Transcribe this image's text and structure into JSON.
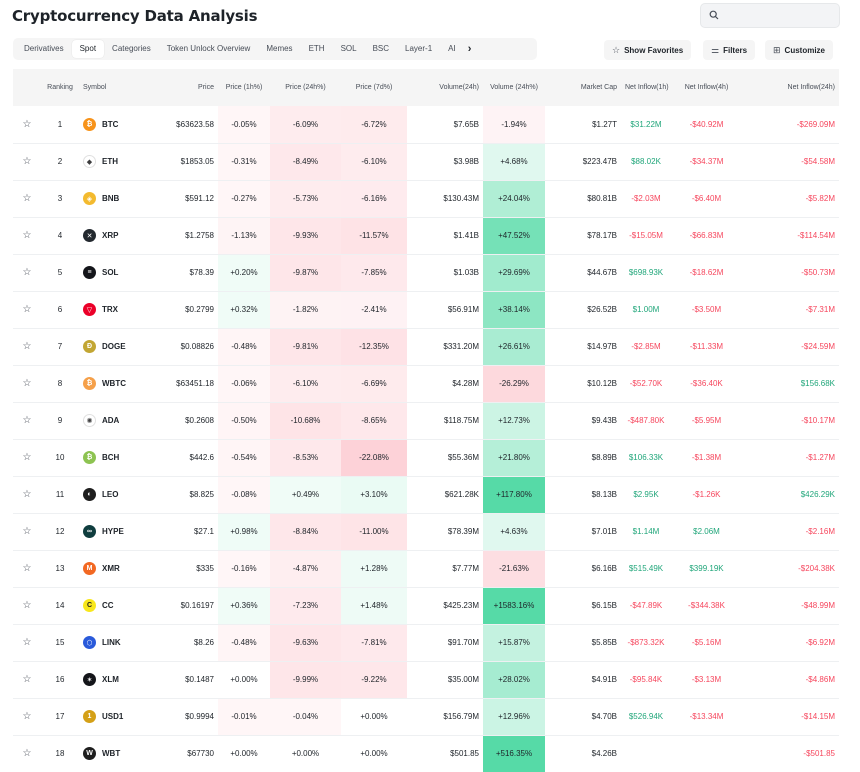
{
  "title": "Cryptocurrency Data Analysis",
  "search": {
    "placeholder": ""
  },
  "tabs": [
    "Derivatives",
    "Spot",
    "Categories",
    "Token Unlock Overview",
    "Memes",
    "ETH",
    "SOL",
    "BSC",
    "Layer-1",
    "AI"
  ],
  "active_tab": "Spot",
  "toolbar": {
    "favorites_label": "Show Favorites",
    "filters_label": "Filters",
    "customize_label": "Customize"
  },
  "columns": [
    "Ranking",
    "Symbol",
    "Price",
    "Price (1h%)",
    "Price (24h%)",
    "Price (7d%)",
    "Volume(24h)",
    "Volume (24h%)",
    "Market Cap",
    "Net Inflow(1h)",
    "Net Inflow(4h)",
    "Net Inflow(24h)"
  ],
  "rows": [
    {
      "rank": "1",
      "symbol": "BTC",
      "price": "$63623.58",
      "p1h": "-0.05%",
      "p24h": "-6.09%",
      "p7d": "-6.72%",
      "vol": "$7.65B",
      "vol24": "-1.94%",
      "mcap": "$1.27T",
      "in1h": "$31.22M",
      "in4h": "-$40.92M",
      "in24h": "-$269.09M",
      "color": "#f7931a",
      "glyph": "₿"
    },
    {
      "rank": "2",
      "symbol": "ETH",
      "price": "$1853.05",
      "p1h": "-0.31%",
      "p24h": "-8.49%",
      "p7d": "-6.10%",
      "vol": "$3.98B",
      "vol24": "+4.68%",
      "mcap": "$223.47B",
      "in1h": "$88.02K",
      "in4h": "-$34.37M",
      "in24h": "-$54.58M",
      "color": "#ffffff",
      "glyph": "◆"
    },
    {
      "rank": "3",
      "symbol": "BNB",
      "price": "$591.12",
      "p1h": "-0.27%",
      "p24h": "-5.73%",
      "p7d": "-6.16%",
      "vol": "$130.43M",
      "vol24": "+24.04%",
      "mcap": "$80.81B",
      "in1h": "-$2.03M",
      "in4h": "-$6.40M",
      "in24h": "-$5.82M",
      "color": "#f3ba2f",
      "glyph": "◈"
    },
    {
      "rank": "4",
      "symbol": "XRP",
      "price": "$1.2758",
      "p1h": "-1.13%",
      "p24h": "-9.93%",
      "p7d": "-11.57%",
      "vol": "$1.41B",
      "vol24": "+47.52%",
      "mcap": "$78.17B",
      "in1h": "-$15.05M",
      "in4h": "-$66.83M",
      "in24h": "-$114.54M",
      "color": "#23292f",
      "glyph": "✕"
    },
    {
      "rank": "5",
      "symbol": "SOL",
      "price": "$78.39",
      "p1h": "+0.20%",
      "p24h": "-9.87%",
      "p7d": "-7.85%",
      "vol": "$1.03B",
      "vol24": "+29.69%",
      "mcap": "$44.67B",
      "in1h": "$698.93K",
      "in4h": "-$18.62M",
      "in24h": "-$50.73M",
      "color": "#14151a",
      "glyph": "≡"
    },
    {
      "rank": "6",
      "symbol": "TRX",
      "price": "$0.2799",
      "p1h": "+0.32%",
      "p24h": "-1.82%",
      "p7d": "-2.41%",
      "vol": "$56.91M",
      "vol24": "+38.14%",
      "mcap": "$26.52B",
      "in1h": "$1.00M",
      "in4h": "-$3.50M",
      "in24h": "-$7.31M",
      "color": "#eb0029",
      "glyph": "▽"
    },
    {
      "rank": "7",
      "symbol": "DOGE",
      "price": "$0.08826",
      "p1h": "-0.48%",
      "p24h": "-9.81%",
      "p7d": "-12.35%",
      "vol": "$331.20M",
      "vol24": "+26.61%",
      "mcap": "$14.97B",
      "in1h": "-$2.85M",
      "in4h": "-$11.33M",
      "in24h": "-$24.59M",
      "color": "#c2a633",
      "glyph": "Ð"
    },
    {
      "rank": "8",
      "symbol": "WBTC",
      "price": "$63451.18",
      "p1h": "-0.06%",
      "p24h": "-6.10%",
      "p7d": "-6.69%",
      "vol": "$4.28M",
      "vol24": "-26.29%",
      "mcap": "$10.12B",
      "in1h": "-$52.70K",
      "in4h": "-$36.40K",
      "in24h": "$156.68K",
      "color": "#f5a04a",
      "glyph": "₿"
    },
    {
      "rank": "9",
      "symbol": "ADA",
      "price": "$0.2608",
      "p1h": "-0.50%",
      "p24h": "-10.68%",
      "p7d": "-8.65%",
      "vol": "$118.75M",
      "vol24": "+12.73%",
      "mcap": "$9.43B",
      "in1h": "-$487.80K",
      "in4h": "-$5.95M",
      "in24h": "-$10.17M",
      "color": "#ffffff",
      "glyph": "✺"
    },
    {
      "rank": "10",
      "symbol": "BCH",
      "price": "$442.6",
      "p1h": "-0.54%",
      "p24h": "-8.53%",
      "p7d": "-22.08%",
      "vol": "$55.36M",
      "vol24": "+21.80%",
      "mcap": "$8.89B",
      "in1h": "$106.33K",
      "in4h": "-$1.38M",
      "in24h": "-$1.27M",
      "color": "#8dc351",
      "glyph": "₿"
    },
    {
      "rank": "11",
      "symbol": "LEO",
      "price": "$8.825",
      "p1h": "-0.08%",
      "p24h": "+0.49%",
      "p7d": "+3.10%",
      "vol": "$621.28K",
      "vol24": "+117.80%",
      "mcap": "$8.13B",
      "in1h": "$2.95K",
      "in4h": "-$1.26K",
      "in24h": "$426.29K",
      "color": "#1e1e1e",
      "glyph": "◐"
    },
    {
      "rank": "12",
      "symbol": "HYPE",
      "price": "$27.1",
      "p1h": "+0.98%",
      "p24h": "-8.84%",
      "p7d": "-11.00%",
      "vol": "$78.39M",
      "vol24": "+4.63%",
      "mcap": "$7.01B",
      "in1h": "$1.14M",
      "in4h": "$2.06M",
      "in24h": "-$2.16M",
      "color": "#0f3d3e",
      "glyph": "∞"
    },
    {
      "rank": "13",
      "symbol": "XMR",
      "price": "$335",
      "p1h": "-0.16%",
      "p24h": "-4.87%",
      "p7d": "+1.28%",
      "vol": "$7.77M",
      "vol24": "-21.63%",
      "mcap": "$6.16B",
      "in1h": "$515.49K",
      "in4h": "$399.19K",
      "in24h": "-$204.38K",
      "color": "#f26822",
      "glyph": "M"
    },
    {
      "rank": "14",
      "symbol": "CC",
      "price": "$0.16197",
      "p1h": "+0.36%",
      "p24h": "-7.23%",
      "p7d": "+1.48%",
      "vol": "$425.23M",
      "vol24": "+1583.16%",
      "mcap": "$6.15B",
      "in1h": "-$47.89K",
      "in4h": "-$344.38K",
      "in24h": "-$48.99M",
      "color": "#f8e71c",
      "glyph": "C"
    },
    {
      "rank": "15",
      "symbol": "LINK",
      "price": "$8.26",
      "p1h": "-0.48%",
      "p24h": "-9.63%",
      "p7d": "-7.81%",
      "vol": "$91.70M",
      "vol24": "+15.87%",
      "mcap": "$5.85B",
      "in1h": "-$873.32K",
      "in4h": "-$5.16M",
      "in24h": "-$6.92M",
      "color": "#2a5ada",
      "glyph": "⬡"
    },
    {
      "rank": "16",
      "symbol": "XLM",
      "price": "$0.1487",
      "p1h": "+0.00%",
      "p24h": "-9.99%",
      "p7d": "-9.22%",
      "vol": "$35.00M",
      "vol24": "+28.02%",
      "mcap": "$4.91B",
      "in1h": "-$95.84K",
      "in4h": "-$3.13M",
      "in24h": "-$4.86M",
      "color": "#14151a",
      "glyph": "✶"
    },
    {
      "rank": "17",
      "symbol": "USD1",
      "price": "$0.9994",
      "p1h": "-0.01%",
      "p24h": "-0.04%",
      "p7d": "+0.00%",
      "vol": "$156.79M",
      "vol24": "+12.96%",
      "mcap": "$4.70B",
      "in1h": "$526.94K",
      "in4h": "-$13.34M",
      "in24h": "-$14.15M",
      "color": "#d4a017",
      "glyph": "1"
    },
    {
      "rank": "18",
      "symbol": "WBT",
      "price": "$67730",
      "p1h": "+0.00%",
      "p24h": "+0.00%",
      "p7d": "+0.00%",
      "vol": "$501.85",
      "vol24": "+516.35%",
      "mcap": "$4.26B",
      "in1h": "",
      "in4h": "",
      "in24h": "-$501.85",
      "color": "#1e1e1e",
      "glyph": "W"
    }
  ]
}
